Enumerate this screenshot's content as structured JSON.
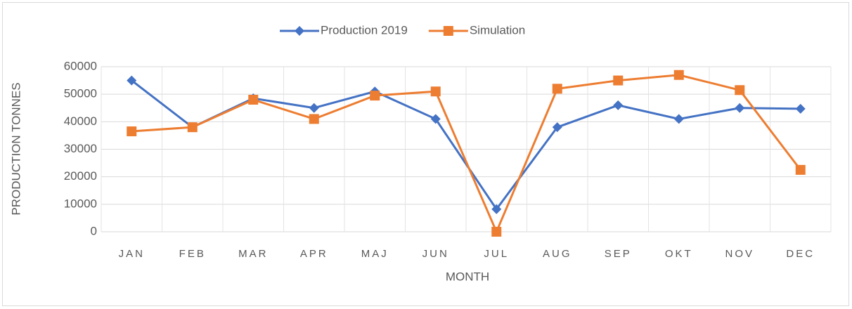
{
  "chart_data": {
    "type": "line",
    "categories": [
      "JAN",
      "FEB",
      "MAR",
      "APR",
      "MAJ",
      "JUN",
      "JUL",
      "AUG",
      "SEP",
      "OKT",
      "NOV",
      "DEC"
    ],
    "series": [
      {
        "name": "Production 2019",
        "color": "#4472c4",
        "marker": "diamond",
        "values": [
          55000,
          38000,
          48500,
          45000,
          51000,
          41000,
          8200,
          38000,
          46000,
          41000,
          45000,
          44700
        ]
      },
      {
        "name": "Simulation",
        "color": "#ed7d31",
        "marker": "square",
        "values": [
          36500,
          38000,
          48000,
          41000,
          49500,
          51000,
          0,
          52000,
          55000,
          57000,
          51500,
          22500
        ]
      }
    ],
    "x_label": "MONTH",
    "y_label": "PRODUCTION TONNES",
    "ylim": [
      0,
      60000
    ],
    "yticks": [
      0,
      10000,
      20000,
      30000,
      40000,
      50000,
      60000
    ],
    "grid": true,
    "legend": "top"
  }
}
